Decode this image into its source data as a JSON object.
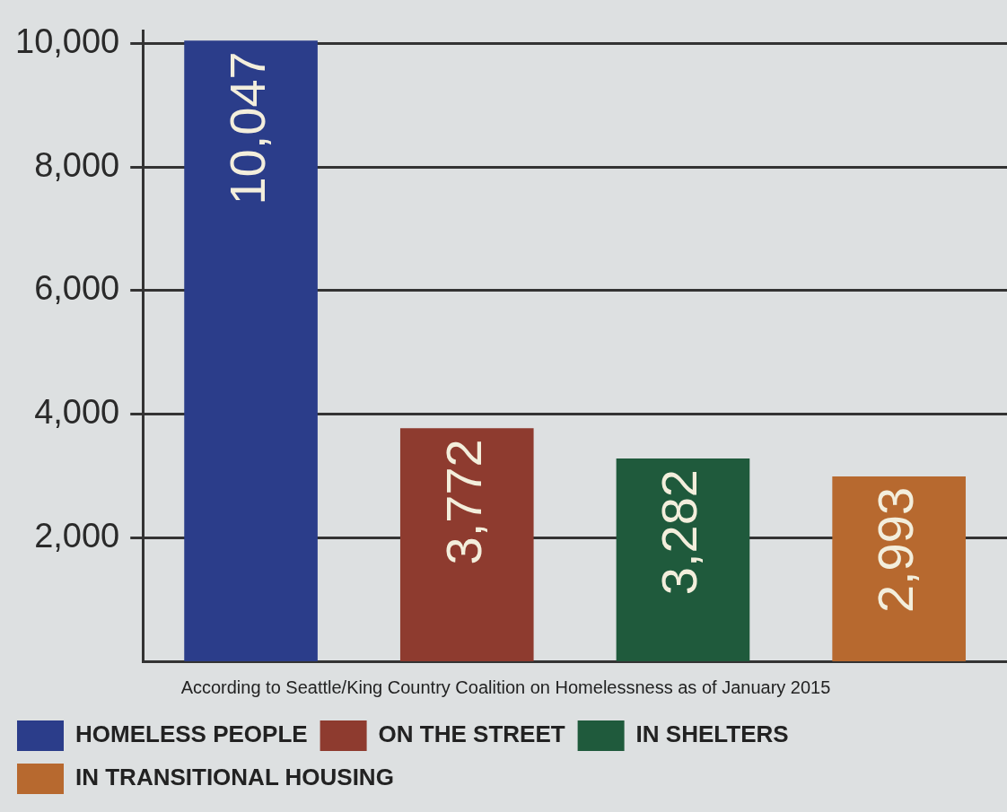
{
  "chart_data": {
    "type": "bar",
    "categories": [
      null,
      null,
      null,
      null
    ],
    "series": [
      {
        "name": "HOMELESS PEOPLE",
        "color": "#2b3d8a",
        "values": [
          10047,
          null,
          null,
          null
        ],
        "value_labels": [
          "10,047",
          null,
          null,
          null
        ]
      },
      {
        "name": "ON THE STREET",
        "color": "#8e3b2f",
        "values": [
          null,
          3772,
          null,
          null
        ],
        "value_labels": [
          null,
          "3,772",
          null,
          null
        ]
      },
      {
        "name": "IN SHELTERS",
        "color": "#1f5a3c",
        "values": [
          null,
          null,
          3282,
          null
        ],
        "value_labels": [
          null,
          null,
          "3,282",
          null
        ]
      },
      {
        "name": "IN TRANSITIONAL HOUSING",
        "color": "#b7692f",
        "values": [
          null,
          null,
          null,
          2993
        ],
        "value_labels": [
          null,
          null,
          null,
          "2,993"
        ]
      }
    ],
    "ylim": [
      0,
      10200
    ],
    "yticks": [
      {
        "value": 2000,
        "label": "2,000"
      },
      {
        "value": 4000,
        "label": "4,000"
      },
      {
        "value": 6000,
        "label": "6,000"
      },
      {
        "value": 8000,
        "label": "8,000"
      },
      {
        "value": 10000,
        "label": "10,000"
      }
    ],
    "grid": "y",
    "legend": "bottom",
    "tick_labels": "y",
    "annotations": [
      "According to Seattle/King Country Coalition on Homelessness as of January 2015"
    ]
  }
}
